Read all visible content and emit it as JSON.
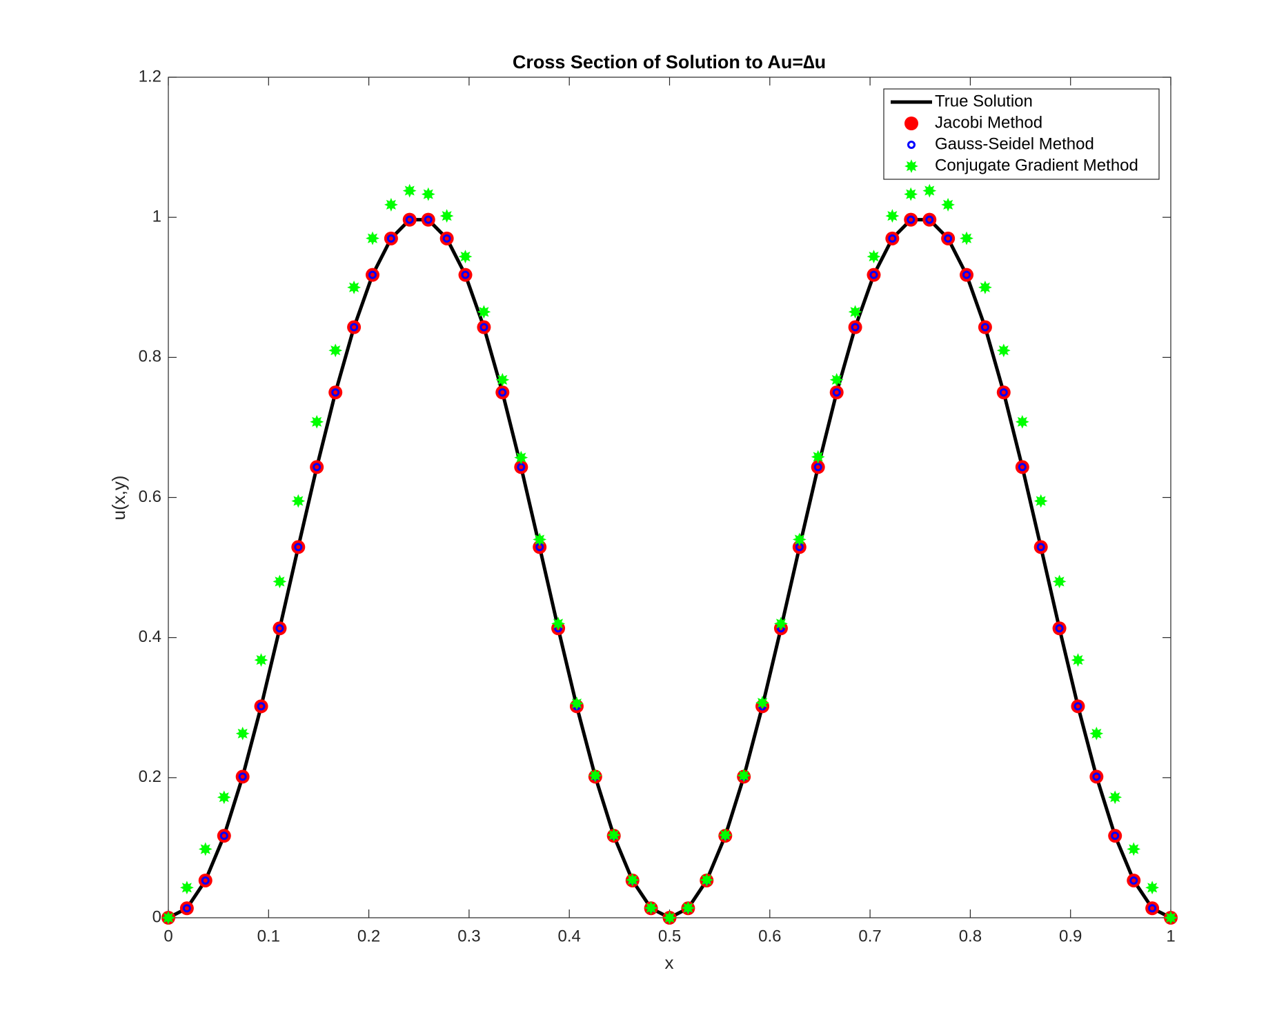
{
  "chart_data": {
    "type": "line",
    "title": "Cross Section of Solution to Au=∆u",
    "xlabel": "x",
    "ylabel": "u(x,y)",
    "xlim": [
      0,
      1
    ],
    "ylim": [
      0,
      1.2
    ],
    "xticks": [
      0,
      0.1,
      0.2,
      0.3,
      0.4,
      0.5,
      0.6,
      0.7,
      0.8,
      0.9,
      1
    ],
    "yticks": [
      0,
      0.2,
      0.4,
      0.6,
      0.8,
      1,
      1.2
    ],
    "grid": false,
    "legend": "northeast",
    "x": [
      0,
      0.0185,
      0.037,
      0.0556,
      0.0741,
      0.0926,
      0.1111,
      0.1296,
      0.1481,
      0.1667,
      0.1852,
      0.2037,
      0.2222,
      0.2407,
      0.2593,
      0.2778,
      0.2963,
      0.3148,
      0.3333,
      0.3519,
      0.3704,
      0.3889,
      0.4074,
      0.4259,
      0.4444,
      0.463,
      0.4815,
      0.5,
      0.5185,
      0.537,
      0.5556,
      0.5741,
      0.5926,
      0.6111,
      0.6296,
      0.6481,
      0.6667,
      0.6852,
      0.7037,
      0.7222,
      0.7407,
      0.7593,
      0.7778,
      0.7963,
      0.8148,
      0.8333,
      0.8519,
      0.8704,
      0.8889,
      0.9074,
      0.9259,
      0.9444,
      0.963,
      0.9815,
      1
    ],
    "series": [
      {
        "name": "True Solution",
        "color": "#000000",
        "marker": "none",
        "values": [
          0,
          0.0135,
          0.0532,
          0.117,
          0.2014,
          0.3019,
          0.4132,
          0.5292,
          0.6434,
          0.75,
          0.8431,
          0.9178,
          0.9698,
          0.9966,
          0.9966,
          0.9698,
          0.9178,
          0.8431,
          0.75,
          0.6434,
          0.5292,
          0.4132,
          0.3019,
          0.2014,
          0.117,
          0.0532,
          0.0135,
          0,
          0.0135,
          0.0532,
          0.117,
          0.2014,
          0.3019,
          0.4132,
          0.5292,
          0.6434,
          0.75,
          0.8431,
          0.9178,
          0.9698,
          0.9966,
          0.9966,
          0.9698,
          0.9178,
          0.8431,
          0.75,
          0.6434,
          0.5292,
          0.4132,
          0.3019,
          0.2014,
          0.117,
          0.0532,
          0.0135,
          0
        ]
      },
      {
        "name": "Jacobi Method",
        "color": "#ff0000",
        "marker": "filled-circle",
        "values": [
          0,
          0.0135,
          0.0532,
          0.117,
          0.2014,
          0.3019,
          0.4132,
          0.5292,
          0.6434,
          0.75,
          0.8431,
          0.9178,
          0.9698,
          0.9966,
          0.9966,
          0.9698,
          0.9178,
          0.8431,
          0.75,
          0.6434,
          0.5292,
          0.4132,
          0.3019,
          0.2014,
          0.117,
          0.0532,
          0.0135,
          0,
          0.0135,
          0.0532,
          0.117,
          0.2014,
          0.3019,
          0.4132,
          0.5292,
          0.6434,
          0.75,
          0.8431,
          0.9178,
          0.9698,
          0.9966,
          0.9966,
          0.9698,
          0.9178,
          0.8431,
          0.75,
          0.6434,
          0.5292,
          0.4132,
          0.3019,
          0.2014,
          0.117,
          0.0532,
          0.0135,
          0
        ]
      },
      {
        "name": "Gauss-Seidel Method",
        "color": "#0000ff",
        "marker": "open-circle",
        "values": [
          0,
          0.0135,
          0.0532,
          0.117,
          0.2014,
          0.3019,
          0.4132,
          0.5292,
          0.6434,
          0.75,
          0.8431,
          0.9178,
          0.9698,
          0.9966,
          0.9966,
          0.9698,
          0.9178,
          0.8431,
          0.75,
          0.6434,
          0.5292,
          0.4132,
          0.3019,
          0.2014,
          0.117,
          0.0532,
          0.0135,
          0,
          0.0135,
          0.0532,
          0.117,
          0.2014,
          0.3019,
          0.4132,
          0.5292,
          0.6434,
          0.75,
          0.8431,
          0.9178,
          0.9698,
          0.9966,
          0.9966,
          0.9698,
          0.9178,
          0.8431,
          0.75,
          0.6434,
          0.5292,
          0.4132,
          0.3019,
          0.2014,
          0.117,
          0.0532,
          0.0135,
          0
        ]
      },
      {
        "name": "Conjugate Gradient Method",
        "color": "#00ff00",
        "marker": "star",
        "values": [
          0,
          0.043,
          0.098,
          0.172,
          0.263,
          0.368,
          0.48,
          0.595,
          0.708,
          0.81,
          0.9,
          0.97,
          1.018,
          1.038,
          1.033,
          1.002,
          0.944,
          0.865,
          0.768,
          0.657,
          0.54,
          0.42,
          0.306,
          0.203,
          0.118,
          0.054,
          0.014,
          0,
          0.014,
          0.054,
          0.118,
          0.203,
          0.307,
          0.42,
          0.54,
          0.658,
          0.768,
          0.865,
          0.944,
          1.002,
          1.033,
          1.038,
          1.018,
          0.97,
          0.9,
          0.81,
          0.708,
          0.595,
          0.48,
          0.368,
          0.263,
          0.172,
          0.098,
          0.043,
          0
        ]
      }
    ]
  }
}
